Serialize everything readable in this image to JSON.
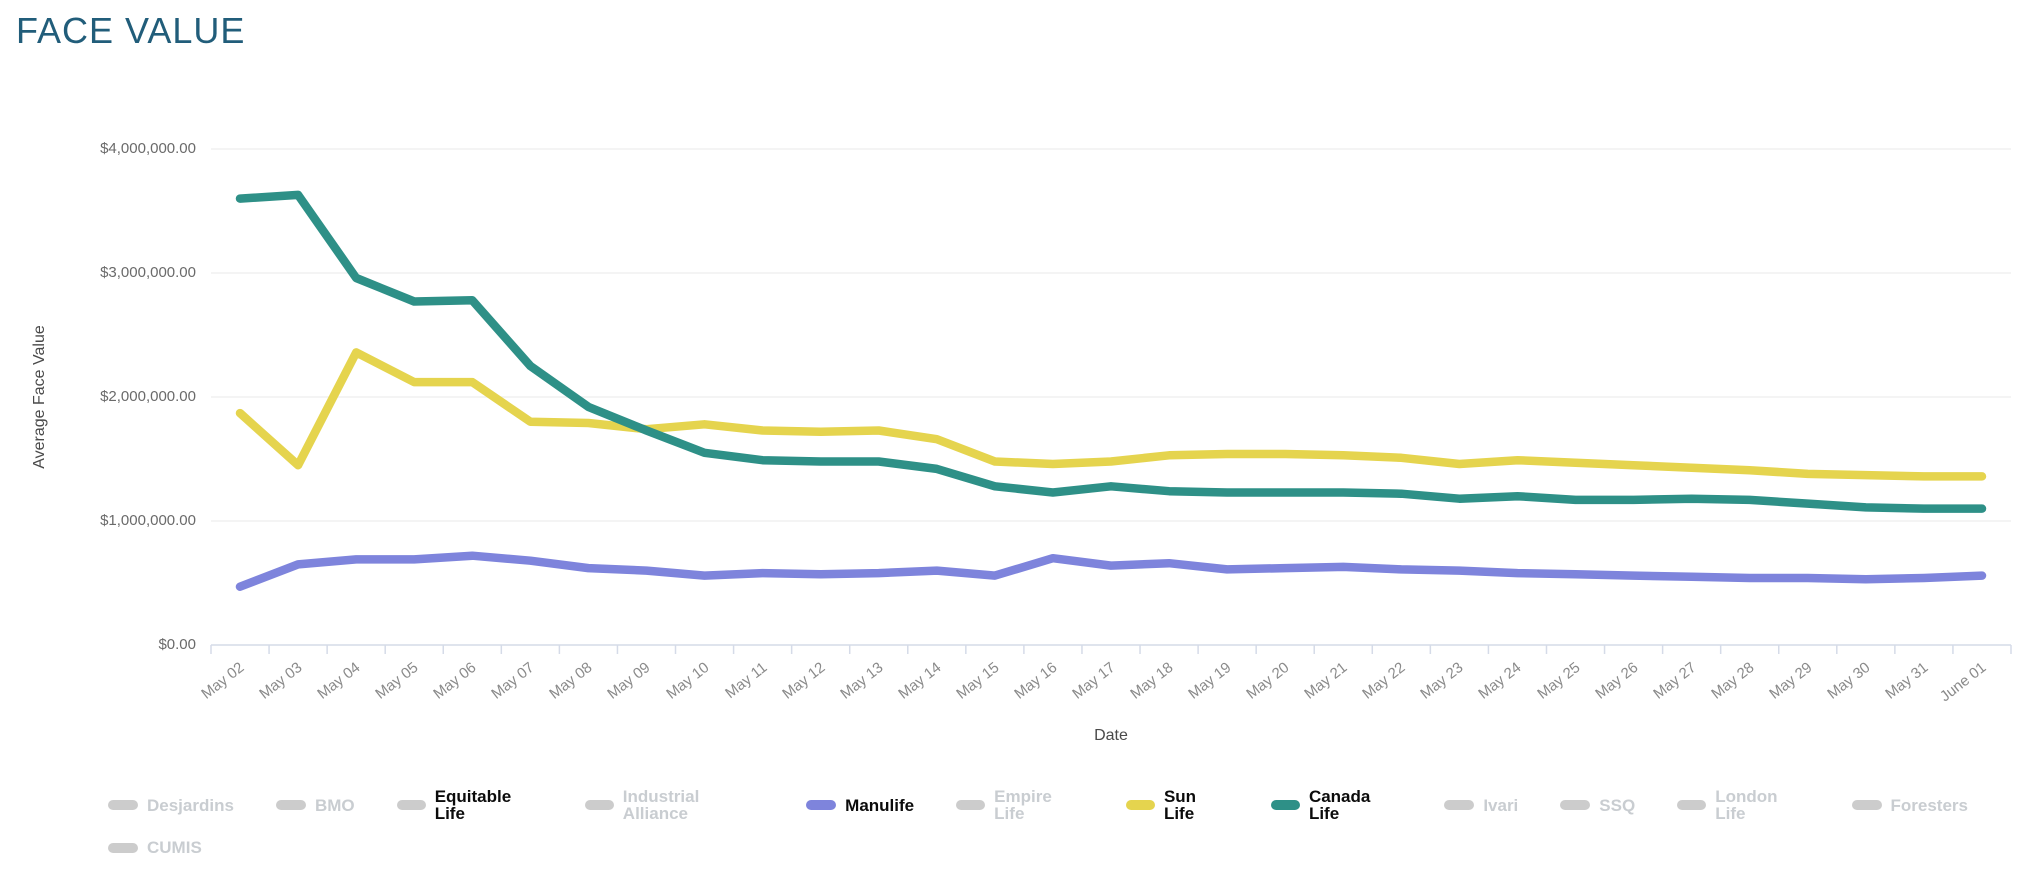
{
  "page": {
    "title": "FACE VALUE"
  },
  "chart_data": {
    "type": "line",
    "title": "FACE VALUE",
    "xlabel": "Date",
    "ylabel": "Average Face Value",
    "ylim": [
      0,
      4000000
    ],
    "grid": true,
    "legend_position": "bottom",
    "y_ticks": [
      "$4,000,000.00",
      "$3,000,000.00",
      "$2,000,000.00",
      "$1,000,000.00",
      "$0.00"
    ],
    "y_tick_values": [
      4000000,
      3000000,
      2000000,
      1000000,
      0
    ],
    "categories": [
      "May 02",
      "May 03",
      "May 04",
      "May 05",
      "May 06",
      "May 07",
      "May 08",
      "May 09",
      "May 10",
      "May 11",
      "May 12",
      "May 13",
      "May 14",
      "May 15",
      "May 16",
      "May 17",
      "May 18",
      "May 19",
      "May 20",
      "May 21",
      "May 22",
      "May 23",
      "May 24",
      "May 25",
      "May 26",
      "May 27",
      "May 28",
      "May 29",
      "May 30",
      "May 31",
      "June 01"
    ],
    "series": [
      {
        "name": "Manulife",
        "color": "#7e84dc",
        "values": [
          470000,
          650000,
          690000,
          690000,
          720000,
          680000,
          620000,
          600000,
          560000,
          580000,
          570000,
          580000,
          600000,
          560000,
          700000,
          640000,
          660000,
          610000,
          620000,
          630000,
          610000,
          600000,
          580000,
          570000,
          560000,
          550000,
          540000,
          540000,
          530000,
          540000,
          560000
        ]
      },
      {
        "name": "Sun Life",
        "color": "#e5d44e",
        "values": [
          1870000,
          1450000,
          2360000,
          2120000,
          2120000,
          1800000,
          1790000,
          1740000,
          1780000,
          1730000,
          1720000,
          1730000,
          1660000,
          1480000,
          1460000,
          1480000,
          1530000,
          1540000,
          1540000,
          1530000,
          1510000,
          1460000,
          1490000,
          1470000,
          1450000,
          1430000,
          1410000,
          1380000,
          1370000,
          1360000,
          1360000
        ]
      },
      {
        "name": "Canada Life",
        "color": "#2e9087",
        "values": [
          3600000,
          3630000,
          2960000,
          2770000,
          2780000,
          2250000,
          1920000,
          1730000,
          1550000,
          1490000,
          1480000,
          1480000,
          1420000,
          1280000,
          1230000,
          1280000,
          1240000,
          1230000,
          1230000,
          1230000,
          1220000,
          1180000,
          1200000,
          1170000,
          1170000,
          1180000,
          1170000,
          1140000,
          1110000,
          1100000,
          1100000
        ]
      }
    ]
  },
  "legend": {
    "items": [
      {
        "label": "Desjardins",
        "active": false,
        "color": "#cccccc"
      },
      {
        "label": "BMO",
        "active": false,
        "color": "#cccccc"
      },
      {
        "label": "Equitable Life",
        "active": true,
        "color": "#cccccc"
      },
      {
        "label": "Industrial Alliance",
        "active": false,
        "color": "#cccccc"
      },
      {
        "label": "Manulife",
        "active": true,
        "color": "#7e84dc"
      },
      {
        "label": "Empire Life",
        "active": false,
        "color": "#cccccc"
      },
      {
        "label": "Sun Life",
        "active": true,
        "color": "#e5d44e"
      },
      {
        "label": "Canada Life",
        "active": true,
        "color": "#2e9087"
      },
      {
        "label": "Ivari",
        "active": false,
        "color": "#cccccc"
      },
      {
        "label": "SSQ",
        "active": false,
        "color": "#cccccc"
      },
      {
        "label": "London Life",
        "active": false,
        "color": "#cccccc"
      },
      {
        "label": "Foresters",
        "active": false,
        "color": "#cccccc"
      },
      {
        "label": "CUMIS",
        "active": false,
        "color": "#cccccc"
      }
    ]
  }
}
